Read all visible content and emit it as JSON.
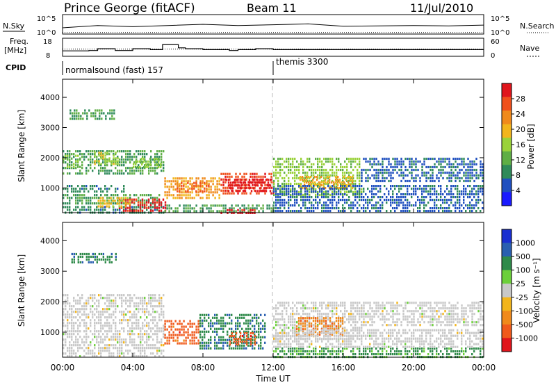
{
  "header": {
    "station": "Prince George (fitACF)",
    "beam": "Beam 11",
    "date": "11/Jul/2010"
  },
  "noise_panel": {
    "left_label": "N.Sky",
    "right_label": "N.Search",
    "left_ticks": [
      "10^5",
      "10^0"
    ],
    "right_ticks": [
      "10^5",
      "10^0"
    ]
  },
  "freq_panel": {
    "left_label_line1": "Freq.",
    "left_label_line2": "[MHz]",
    "left_ticks": [
      "18",
      "8"
    ],
    "right_label": "Nave",
    "right_ticks": [
      "60",
      "0"
    ]
  },
  "cpid_panel": {
    "label": "CPID",
    "programs": [
      {
        "name": "normalsound (fast) 157",
        "start_hour": 0
      },
      {
        "name": "themis 3300",
        "start_hour": 12
      }
    ]
  },
  "time_axis": {
    "label": "Time UT",
    "ticks": [
      "00:00",
      "04:00",
      "08:00",
      "12:00",
      "16:00",
      "20:00",
      "00:00"
    ]
  },
  "power_panel": {
    "ylabel": "Slant Range [km]",
    "yticks": [
      "4000",
      "3000",
      "2000",
      "1000"
    ],
    "colorbar_label": "Power [dB]",
    "colorbar_ticks": [
      "28",
      "24",
      "20",
      "16",
      "12",
      "8",
      "4"
    ],
    "colors": [
      "#1a1aff",
      "#1f4fbf",
      "#2f8a5a",
      "#5fae45",
      "#9ad23a",
      "#f2b51c",
      "#f08a1c",
      "#f0501c",
      "#e0151c"
    ]
  },
  "velocity_panel": {
    "ylabel": "Slant Range [km]",
    "yticks": [
      "4000",
      "3000",
      "2000",
      "1000"
    ],
    "colorbar_label": "Velocity [m s⁻¹]",
    "colorbar_ticks": [
      "1000",
      "500",
      "100",
      "25",
      "-25",
      "-100",
      "-500",
      "-1000"
    ],
    "colors": [
      "#1a2fd0",
      "#2a5fb0",
      "#2f8a4a",
      "#6ccf3a",
      "#c8c8c8",
      "#f2b51c",
      "#f08a1c",
      "#f05a1c",
      "#e0151c"
    ]
  },
  "chart_data": [
    {
      "type": "line",
      "title": "N.Sky / N.Search",
      "x_range_hours": [
        0,
        24
      ],
      "ylim_log10": [
        0,
        5
      ],
      "series": [
        {
          "name": "N.Sky",
          "x": [
            0,
            2,
            4,
            6,
            8,
            10,
            12,
            14,
            16,
            18,
            20,
            22,
            24
          ],
          "y_log10": [
            1.6,
            2.2,
            1.9,
            2.2,
            2.5,
            2.2,
            2.4,
            2.6,
            2.0,
            2.1,
            2.2,
            2.1,
            2.3
          ]
        },
        {
          "name": "N.Search",
          "x": [
            0,
            2,
            4,
            6,
            8,
            10,
            12,
            14,
            16,
            18,
            20,
            22,
            24
          ],
          "y_log10": [
            0.4,
            0.4,
            0.4,
            0.4,
            0.4,
            0.4,
            0.4,
            0.4,
            0.4,
            0.4,
            0.4,
            0.4,
            0.4
          ]
        }
      ]
    },
    {
      "type": "line",
      "title": "Freq. / Nave",
      "x_range_hours": [
        0,
        24
      ],
      "ylim": [
        8,
        18
      ],
      "y2lim": [
        0,
        60
      ],
      "series": [
        {
          "name": "Freq.",
          "x": [
            0,
            1.5,
            2,
            3,
            4,
            5,
            5.7,
            6.6,
            7,
            8,
            9.5,
            10,
            11,
            12,
            24
          ],
          "y": [
            11,
            11.2,
            12.2,
            11.2,
            12.2,
            11.7,
            14.5,
            12.7,
            12.2,
            11.7,
            11.2,
            11.7,
            12.2,
            11.7,
            11.7
          ]
        },
        {
          "name": "Nave",
          "x": [
            0,
            12,
            24
          ],
          "y2": [
            24,
            24,
            24
          ]
        }
      ]
    },
    {
      "type": "heatmap",
      "title": "Power [dB]",
      "x_range_hours": [
        0,
        24
      ],
      "y_range_km": [
        180,
        4600
      ],
      "value_range": [
        0,
        30
      ],
      "regions": [
        {
          "t0": 0,
          "t1": 5.8,
          "r0": 180,
          "r1": 400,
          "value": 8
        },
        {
          "t0": 0,
          "t1": 3.5,
          "r0": 900,
          "r1": 1100,
          "value": 8
        },
        {
          "t0": 0,
          "t1": 5.8,
          "r0": 1500,
          "r1": 2250,
          "value": 10
        },
        {
          "t0": 0,
          "t1": 1,
          "r0": 1700,
          "r1": 2100,
          "value": 14
        },
        {
          "t0": 1.8,
          "t1": 3.2,
          "r0": 1800,
          "r1": 2200,
          "value": 16
        },
        {
          "t0": 4,
          "t1": 5.6,
          "r0": 1700,
          "r1": 2000,
          "value": 14
        },
        {
          "t0": 0,
          "t1": 5.6,
          "r0": 500,
          "r1": 800,
          "value": 10
        },
        {
          "t0": 3.2,
          "t1": 5.9,
          "r0": 250,
          "r1": 650,
          "value": 28
        },
        {
          "t0": 2,
          "t1": 3.8,
          "r0": 400,
          "r1": 700,
          "value": 18
        },
        {
          "t0": 5.8,
          "t1": 9,
          "r0": 700,
          "r1": 1350,
          "value": 20
        },
        {
          "t0": 6.5,
          "t1": 8.5,
          "r0": 900,
          "r1": 1200,
          "value": 24
        },
        {
          "t0": 9,
          "t1": 12,
          "r0": 800,
          "r1": 1500,
          "value": 26
        },
        {
          "t0": 9.3,
          "t1": 11.8,
          "r0": 900,
          "r1": 1300,
          "value": 29
        },
        {
          "t0": 12,
          "t1": 17,
          "r0": 800,
          "r1": 2000,
          "value": 14
        },
        {
          "t0": 13.5,
          "t1": 16.5,
          "r0": 1000,
          "r1": 1400,
          "value": 20
        },
        {
          "t0": 12,
          "t1": 24,
          "r0": 180,
          "r1": 1100,
          "value": 6
        },
        {
          "t0": 17,
          "t1": 24,
          "r0": 1200,
          "r1": 2000,
          "value": 6
        },
        {
          "t0": 5.8,
          "t1": 12,
          "r0": 180,
          "r1": 450,
          "value": 10
        },
        {
          "t0": 9,
          "t1": 11,
          "r0": 180,
          "r1": 300,
          "value": 28
        },
        {
          "t0": 0.4,
          "t1": 3,
          "r0": 3300,
          "r1": 3600,
          "value": 10
        }
      ]
    },
    {
      "type": "heatmap",
      "title": "Velocity [m s⁻¹]",
      "x_range_hours": [
        0,
        24
      ],
      "y_range_km": [
        180,
        4600
      ],
      "value_range": [
        -1000,
        1000
      ],
      "regions": [
        {
          "t0": 0,
          "t1": 5.8,
          "r0": 180,
          "r1": 2250,
          "value": 0
        },
        {
          "t0": 5.8,
          "t1": 7.8,
          "r0": 600,
          "r1": 1400,
          "value": -200
        },
        {
          "t0": 7.8,
          "t1": 11.5,
          "r0": 500,
          "r1": 1600,
          "value": 150
        },
        {
          "t0": 9.5,
          "t1": 11,
          "r0": 600,
          "r1": 1000,
          "value": -200
        },
        {
          "t0": 12,
          "t1": 17,
          "r0": 800,
          "r1": 2000,
          "value": 0
        },
        {
          "t0": 13.3,
          "t1": 16,
          "r0": 900,
          "r1": 1500,
          "value": -150
        },
        {
          "t0": 12,
          "t1": 24,
          "r0": 180,
          "r1": 500,
          "value": 120
        },
        {
          "t0": 12,
          "t1": 24,
          "r0": 500,
          "r1": 1100,
          "value": 0
        },
        {
          "t0": 17,
          "t1": 24,
          "r0": 1200,
          "r1": 2000,
          "value": 0
        },
        {
          "t0": 0.5,
          "t1": 3,
          "r0": 3300,
          "r1": 3600,
          "value": 150
        }
      ]
    }
  ]
}
